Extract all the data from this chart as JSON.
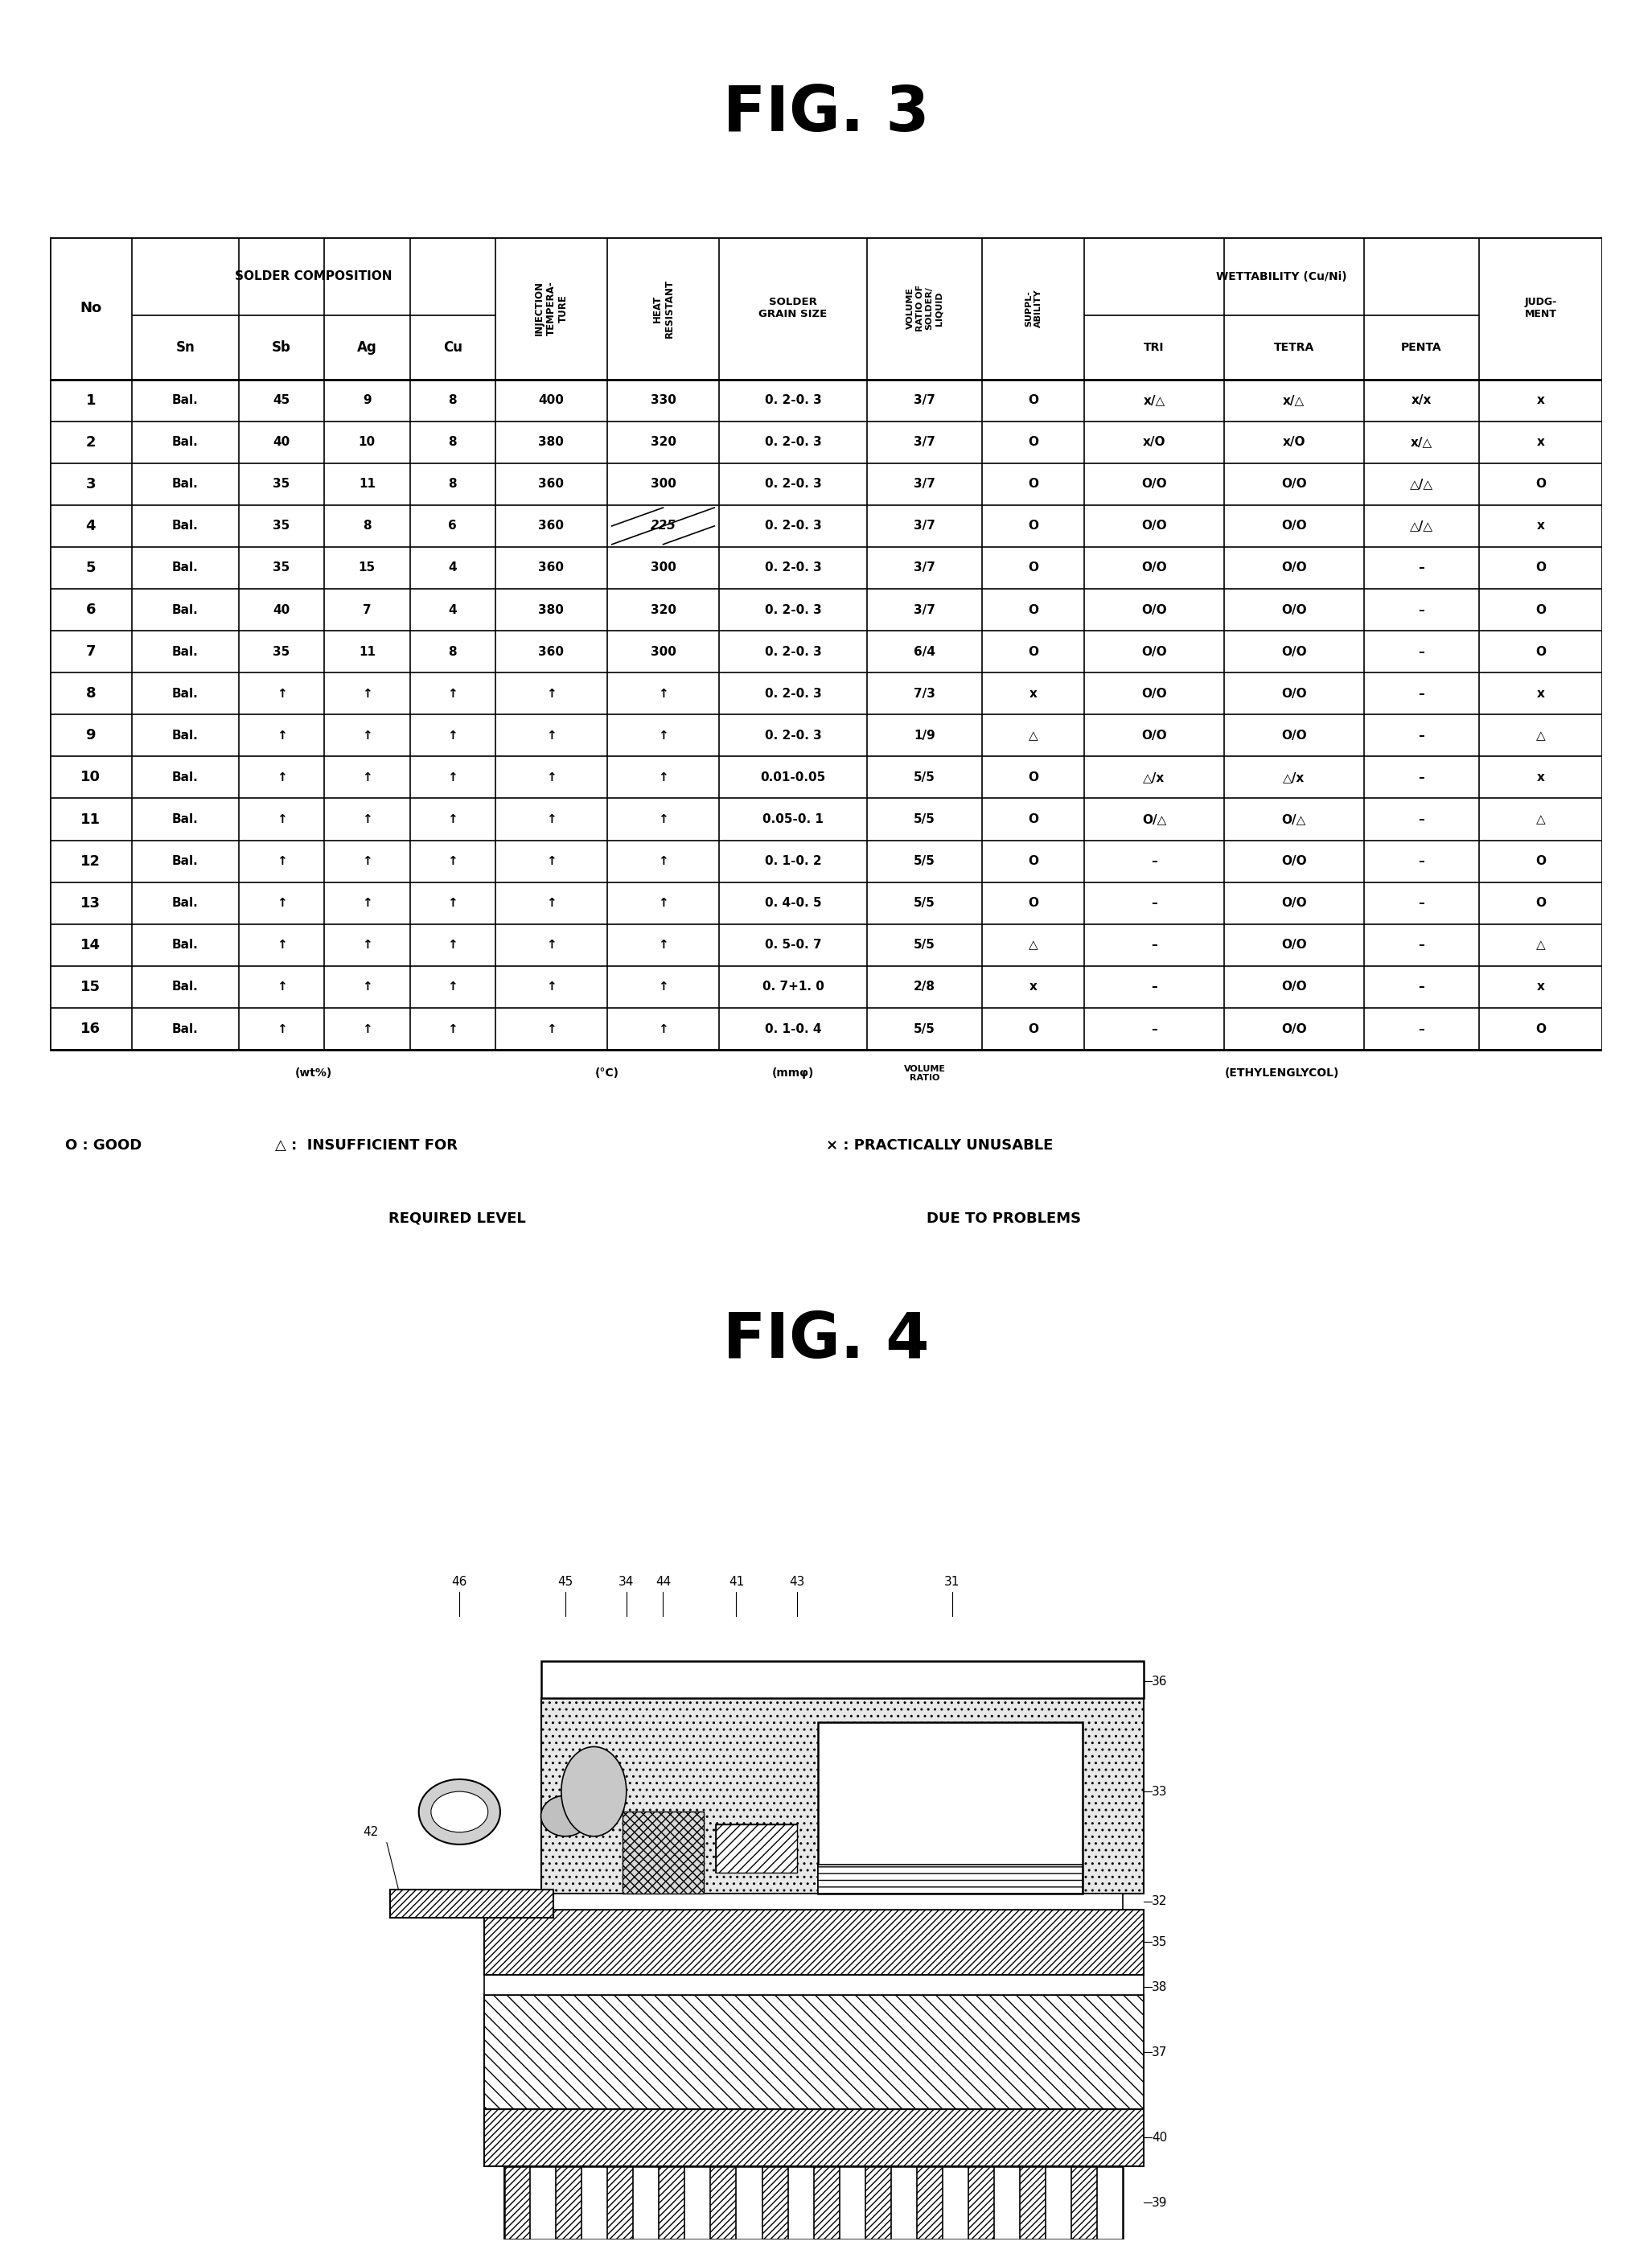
{
  "fig3_title": "FIG. 3",
  "fig4_title": "FIG. 4",
  "col_headers_top": [
    "No",
    "SOLDER COMPOSITION",
    "INJECTION\nTEMPERA-\nTURE",
    "HEAT\nRESISTANT",
    "SOLDER\nGRAIN SIZE",
    "VOLUME\nRATIO OF\nSOLDER/\nLIQUID",
    "SUPPL-\nABILITY",
    "WETTABILITY (Cu/Ni)",
    "JUDG-\nMENT"
  ],
  "col_headers_bot": [
    "",
    "Sn",
    "Sb",
    "Ag",
    "Cu",
    "",
    "",
    "",
    "",
    "",
    "TRI",
    "TETRA",
    "PENTA",
    ""
  ],
  "rows": [
    [
      "1",
      "Bal.",
      "45",
      "9",
      "8",
      "400",
      "330",
      "0. 2-0. 3",
      "3/7",
      "O",
      "x/△",
      "x/△",
      "x/x",
      "x"
    ],
    [
      "2",
      "Bal.",
      "40",
      "10",
      "8",
      "380",
      "320",
      "0. 2-0. 3",
      "3/7",
      "O",
      "x/O",
      "x/O",
      "x/△",
      "x"
    ],
    [
      "3",
      "Bal.",
      "35",
      "11",
      "8",
      "360",
      "300",
      "0. 2-0. 3",
      "3/7",
      "O",
      "O/O",
      "O/O",
      "△/△",
      "O"
    ],
    [
      "4",
      "Bal.",
      "35",
      "8",
      "6",
      "360",
      "<<225>>",
      "0. 2-0. 3",
      "3/7",
      "O",
      "O/O",
      "O/O",
      "△/△",
      "x"
    ],
    [
      "5",
      "Bal.",
      "35",
      "15",
      "4",
      "360",
      "300",
      "0. 2-0. 3",
      "3/7",
      "O",
      "O/O",
      "O/O",
      "–",
      "O"
    ],
    [
      "6",
      "Bal.",
      "40",
      "7",
      "4",
      "380",
      "320",
      "0. 2-0. 3",
      "3/7",
      "O",
      "O/O",
      "O/O",
      "–",
      "O"
    ],
    [
      "7",
      "Bal.",
      "35",
      "11",
      "8",
      "360",
      "300",
      "0. 2-0. 3",
      "6/4",
      "O",
      "O/O",
      "O/O",
      "–",
      "O"
    ],
    [
      "8",
      "Bal.",
      "↑",
      "↑",
      "↑",
      "↑",
      "↑",
      "0. 2-0. 3",
      "7/3",
      "x",
      "O/O",
      "O/O",
      "–",
      "x"
    ],
    [
      "9",
      "Bal.",
      "↑",
      "↑",
      "↑",
      "↑",
      "↑",
      "0. 2-0. 3",
      "1/9",
      "△",
      "O/O",
      "O/O",
      "–",
      "△"
    ],
    [
      "10",
      "Bal.",
      "↑",
      "↑",
      "↑",
      "↑",
      "↑",
      "0.01-0.05",
      "5/5",
      "O",
      "△/x",
      "△/x",
      "–",
      "x"
    ],
    [
      "11",
      "Bal.",
      "↑",
      "↑",
      "↑",
      "↑",
      "↑",
      "0.05-0. 1",
      "5/5",
      "O",
      "O/△",
      "O/△",
      "–",
      "△"
    ],
    [
      "12",
      "Bal.",
      "↑",
      "↑",
      "↑",
      "↑",
      "↑",
      "0. 1-0. 2",
      "5/5",
      "O",
      "–",
      "O/O",
      "–",
      "O"
    ],
    [
      "13",
      "Bal.",
      "↑",
      "↑",
      "↑",
      "↑",
      "↑",
      "0. 4-0. 5",
      "5/5",
      "O",
      "–",
      "O/O",
      "–",
      "O"
    ],
    [
      "14",
      "Bal.",
      "↑",
      "↑",
      "↑",
      "↑",
      "↑",
      "0. 5-0. 7",
      "5/5",
      "△",
      "–",
      "O/O",
      "–",
      "△"
    ],
    [
      "15",
      "Bal.",
      "↑",
      "↑",
      "↑",
      "↑",
      "↑",
      "0. 7+1. 0",
      "2/8",
      "x",
      "–",
      "O/O",
      "–",
      "x"
    ],
    [
      "16",
      "Bal.",
      "↑",
      "↑",
      "↑",
      "↑",
      "↑",
      "0. 1-0. 4",
      "5/5",
      "O",
      "–",
      "O/O",
      "–",
      "O"
    ]
  ],
  "footer": [
    "",
    "(wt%)",
    "",
    "",
    "",
    "(°C)",
    "",
    "(mmφ)",
    "VOLUME\nRATIO",
    "",
    "(ETHYLENGLYCOL)",
    "",
    "",
    ""
  ],
  "legend1": "O : GOOD  △ :  INSUFFICIENT FOR\n                       REQUIRED LEVEL",
  "legend2": "× : PRACTICALLY UNUSABLE\n       DUE TO PROBLEMS",
  "background_color": "#ffffff"
}
